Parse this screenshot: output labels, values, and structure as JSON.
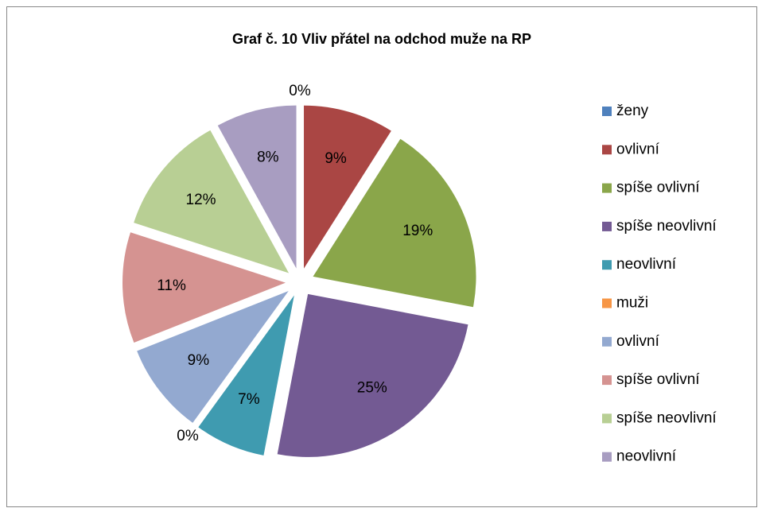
{
  "chart_data": {
    "type": "pie",
    "title": "Graf č. 10 Vliv přátel na odchod muže na RP",
    "categories": [
      "ženy",
      "ovlivní",
      "spíše ovlivní",
      "spíše neovlivní",
      "neovlivní",
      "muži",
      "ovlivní",
      "spíše ovlivní",
      "spíše neovlivní",
      "neovlivní"
    ],
    "values": [
      0,
      9,
      19,
      25,
      7,
      0,
      9,
      11,
      12,
      8
    ],
    "value_labels": [
      "0%",
      "9%",
      "19%",
      "25%",
      "7%",
      "0%",
      "9%",
      "11%",
      "12%",
      "8%"
    ],
    "colors": [
      "#4f81bd",
      "#aa4644",
      "#8aa64a",
      "#735a93",
      "#3f9bb0",
      "#f79646",
      "#93a9d0",
      "#d59391",
      "#b8cf94",
      "#a89dc1"
    ],
    "legend": "right"
  }
}
